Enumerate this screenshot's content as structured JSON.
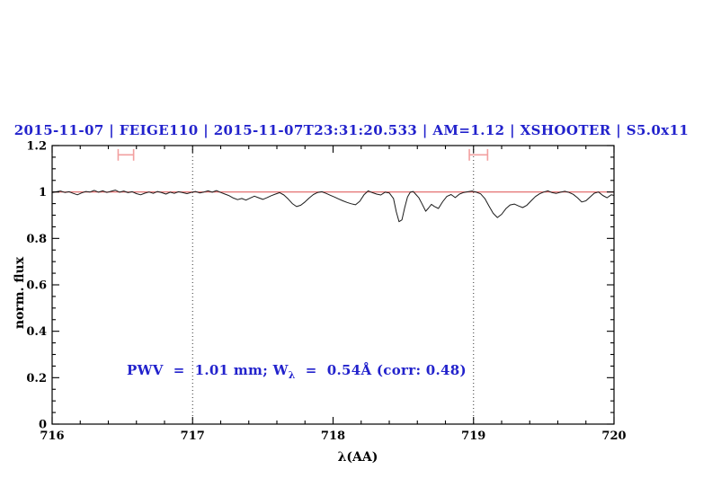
{
  "figure": {
    "title": {
      "text": "2015-11-07 | FEIGE110 | 2015-11-07T23:31:20.533 | AM=1.12 | XSHOOTER | S5.0x11",
      "color": "#2222cc"
    },
    "annotation": {
      "prefix": "PWV  =  1.01 mm; W",
      "sub": "λ",
      "suffix": "  =  0.54Å (corr: 0.48)",
      "color": "#2222cc"
    }
  },
  "chart_data": {
    "type": "line",
    "title": "2015-11-07 | FEIGE110 | 2015-11-07T23:31:20.533 | AM=1.12 | XSHOOTER | S5.0x11",
    "xlabel": "λ(AA)",
    "ylabel": "norm. flux",
    "xlim": [
      716,
      720
    ],
    "ylim": [
      0,
      1.2
    ],
    "grid": "off",
    "legend": "none",
    "x_major_ticks": [
      716,
      717,
      718,
      719,
      720
    ],
    "x_tick_labels": [
      "716",
      "717",
      "718",
      "719",
      "720"
    ],
    "x_minor_step": 0.2,
    "y_major_ticks": [
      0,
      0.2,
      0.4,
      0.6,
      0.8,
      1.0,
      1.2
    ],
    "y_tick_labels": [
      "0",
      "0.2",
      "0.4",
      "0.6",
      "0.8",
      "1",
      "1.2"
    ],
    "y_minor_step": 0.05,
    "reference_line": {
      "y": 1.0,
      "color": "#e06060"
    },
    "dotted_vlines": {
      "x": [
        717,
        719
      ],
      "color": "#333333"
    },
    "telluric_markers": {
      "color": "#f2a0a0",
      "y": 1.16,
      "cap_half_height": 0.025,
      "ranges": [
        [
          716.47,
          716.58
        ],
        [
          718.97,
          719.1
        ]
      ]
    },
    "series": [
      {
        "name": "normalized-spectrum",
        "color": "#1a1a1a",
        "points": [
          [
            716.0,
            0.997
          ],
          [
            716.03,
            1.001
          ],
          [
            716.06,
            1.004
          ],
          [
            716.09,
            0.998
          ],
          [
            716.12,
            1.001
          ],
          [
            716.15,
            0.994
          ],
          [
            716.18,
            0.988
          ],
          [
            716.21,
            0.996
          ],
          [
            716.24,
            1.002
          ],
          [
            716.27,
            1.0
          ],
          [
            716.3,
            1.007
          ],
          [
            716.33,
            0.999
          ],
          [
            716.36,
            1.005
          ],
          [
            716.39,
            0.998
          ],
          [
            716.42,
            1.003
          ],
          [
            716.45,
            1.008
          ],
          [
            716.48,
            0.999
          ],
          [
            716.51,
            1.004
          ],
          [
            716.54,
            0.997
          ],
          [
            716.57,
            1.001
          ],
          [
            716.6,
            0.993
          ],
          [
            716.63,
            0.988
          ],
          [
            716.66,
            0.995
          ],
          [
            716.69,
            1.0
          ],
          [
            716.72,
            0.994
          ],
          [
            716.75,
            1.002
          ],
          [
            716.78,
            0.997
          ],
          [
            716.81,
            0.991
          ],
          [
            716.84,
            0.999
          ],
          [
            716.87,
            0.994
          ],
          [
            716.9,
            1.001
          ],
          [
            716.93,
            0.997
          ],
          [
            716.96,
            0.993
          ],
          [
            716.99,
            0.998
          ],
          [
            717.02,
            1.002
          ],
          [
            717.05,
            0.996
          ],
          [
            717.08,
            1.0
          ],
          [
            717.11,
            1.005
          ],
          [
            717.14,
            0.999
          ],
          [
            717.17,
            1.006
          ],
          [
            717.2,
            0.998
          ],
          [
            717.23,
            0.991
          ],
          [
            717.26,
            0.984
          ],
          [
            717.29,
            0.974
          ],
          [
            717.32,
            0.967
          ],
          [
            717.35,
            0.972
          ],
          [
            717.38,
            0.965
          ],
          [
            717.41,
            0.974
          ],
          [
            717.44,
            0.982
          ],
          [
            717.47,
            0.975
          ],
          [
            717.5,
            0.968
          ],
          [
            717.53,
            0.976
          ],
          [
            717.56,
            0.984
          ],
          [
            717.59,
            0.991
          ],
          [
            717.62,
            0.997
          ],
          [
            717.65,
            0.987
          ],
          [
            717.68,
            0.97
          ],
          [
            717.71,
            0.95
          ],
          [
            717.74,
            0.937
          ],
          [
            717.77,
            0.943
          ],
          [
            717.8,
            0.957
          ],
          [
            717.83,
            0.974
          ],
          [
            717.86,
            0.989
          ],
          [
            717.89,
            0.998
          ],
          [
            717.92,
            1.001
          ],
          [
            717.95,
            0.994
          ],
          [
            717.98,
            0.986
          ],
          [
            718.01,
            0.978
          ],
          [
            718.04,
            0.97
          ],
          [
            718.07,
            0.962
          ],
          [
            718.1,
            0.955
          ],
          [
            718.13,
            0.949
          ],
          [
            718.16,
            0.945
          ],
          [
            718.19,
            0.96
          ],
          [
            718.22,
            0.988
          ],
          [
            718.25,
            1.005
          ],
          [
            718.28,
            0.997
          ],
          [
            718.31,
            0.991
          ],
          [
            718.34,
            0.987
          ],
          [
            718.37,
            0.999
          ],
          [
            718.4,
            0.996
          ],
          [
            718.43,
            0.972
          ],
          [
            718.45,
            0.915
          ],
          [
            718.47,
            0.872
          ],
          [
            718.49,
            0.88
          ],
          [
            718.51,
            0.933
          ],
          [
            718.53,
            0.978
          ],
          [
            718.55,
            0.999
          ],
          [
            718.57,
            1.002
          ],
          [
            718.59,
            0.989
          ],
          [
            718.61,
            0.976
          ],
          [
            718.63,
            0.953
          ],
          [
            718.66,
            0.917
          ],
          [
            718.68,
            0.931
          ],
          [
            718.7,
            0.947
          ],
          [
            718.72,
            0.938
          ],
          [
            718.75,
            0.929
          ],
          [
            718.78,
            0.958
          ],
          [
            718.81,
            0.981
          ],
          [
            718.84,
            0.989
          ],
          [
            718.87,
            0.976
          ],
          [
            718.9,
            0.991
          ],
          [
            718.93,
            0.998
          ],
          [
            718.96,
            1.001
          ],
          [
            718.99,
            1.004
          ],
          [
            719.02,
            0.999
          ],
          [
            719.05,
            0.992
          ],
          [
            719.08,
            0.972
          ],
          [
            719.11,
            0.94
          ],
          [
            719.14,
            0.908
          ],
          [
            719.17,
            0.89
          ],
          [
            719.2,
            0.904
          ],
          [
            719.23,
            0.928
          ],
          [
            719.26,
            0.944
          ],
          [
            719.29,
            0.948
          ],
          [
            719.32,
            0.94
          ],
          [
            719.35,
            0.933
          ],
          [
            719.38,
            0.943
          ],
          [
            719.41,
            0.962
          ],
          [
            719.44,
            0.98
          ],
          [
            719.47,
            0.992
          ],
          [
            719.5,
            1.0
          ],
          [
            719.53,
            1.005
          ],
          [
            719.56,
            0.997
          ],
          [
            719.59,
            0.994
          ],
          [
            719.62,
            0.999
          ],
          [
            719.65,
            1.003
          ],
          [
            719.68,
            0.998
          ],
          [
            719.71,
            0.99
          ],
          [
            719.74,
            0.975
          ],
          [
            719.77,
            0.957
          ],
          [
            719.8,
            0.962
          ],
          [
            719.83,
            0.978
          ],
          [
            719.86,
            0.995
          ],
          [
            719.89,
            1.0
          ],
          [
            719.92,
            0.985
          ],
          [
            719.95,
            0.975
          ],
          [
            719.98,
            0.988
          ],
          [
            720.0,
            0.985
          ]
        ]
      }
    ]
  }
}
